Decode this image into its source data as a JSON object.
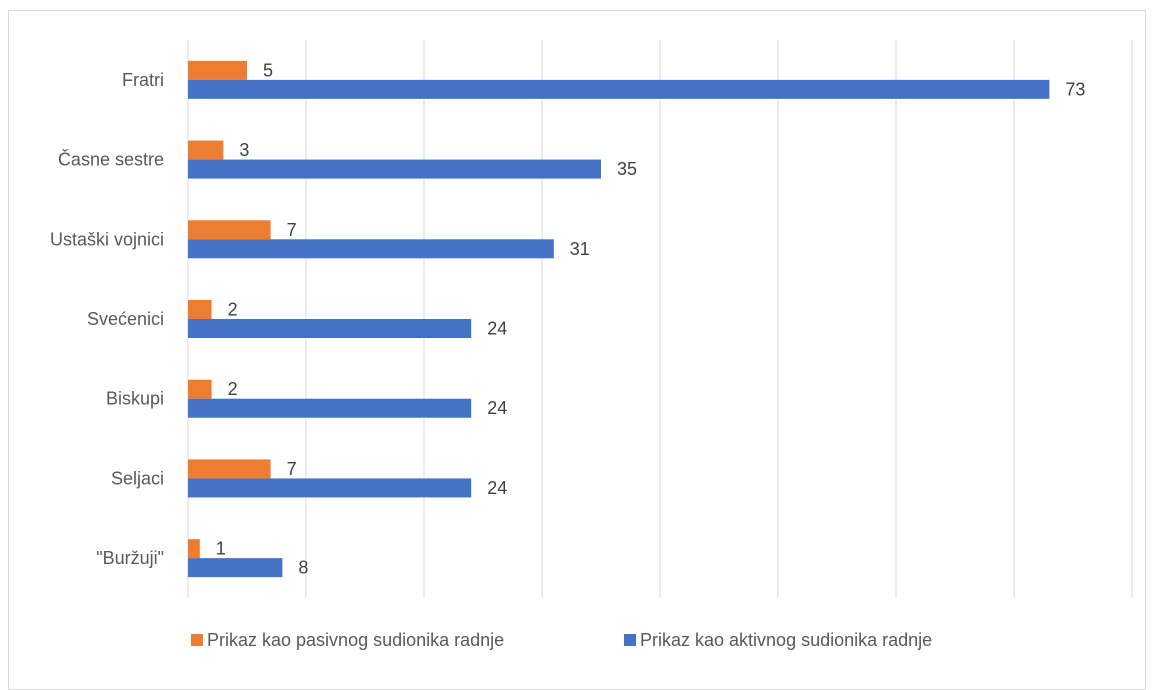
{
  "chart_data": {
    "type": "bar",
    "orientation": "horizontal",
    "categories": [
      "Fratri",
      "Časne sestre",
      "Ustaški vojnici",
      "Svećenici",
      "Biskupi",
      "Seljaci",
      "\"Buržuji\""
    ],
    "series": [
      {
        "name": "Prikaz kao pasivnog sudionika radnje",
        "color": "#ED7D31",
        "values": [
          5,
          3,
          7,
          2,
          2,
          7,
          1
        ]
      },
      {
        "name": "Prikaz kao aktivnog sudionika radnje",
        "color": "#4472C4",
        "values": [
          73,
          35,
          31,
          24,
          24,
          24,
          8
        ]
      }
    ],
    "xlim": [
      0,
      80
    ],
    "x_gridline_step": 10,
    "grid": "vertical",
    "axis_tick_labels_shown": false,
    "data_labels": true,
    "legend_position": "bottom"
  }
}
